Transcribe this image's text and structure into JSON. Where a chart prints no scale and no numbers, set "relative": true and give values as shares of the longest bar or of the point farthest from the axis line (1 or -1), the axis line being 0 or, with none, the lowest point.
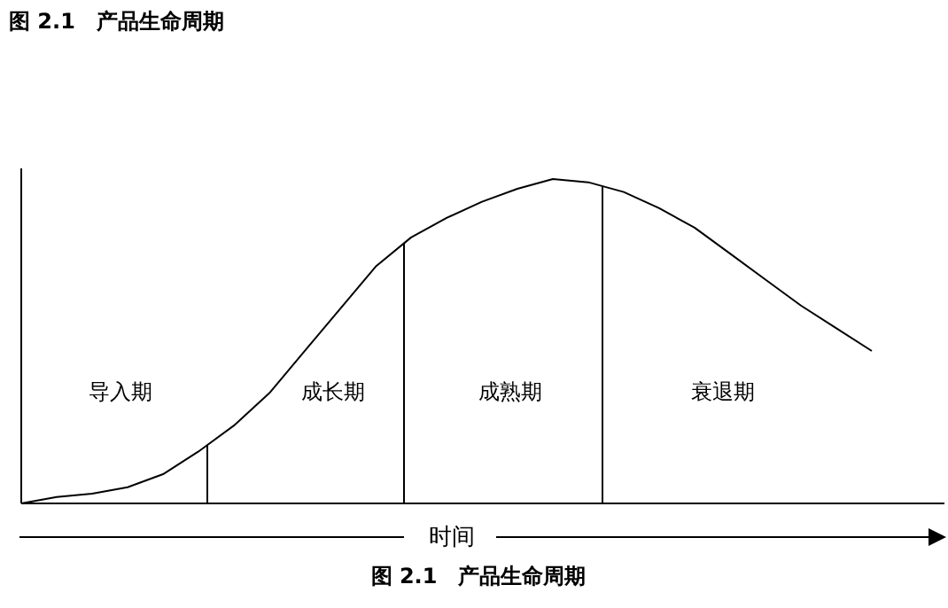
{
  "chart_data": {
    "type": "line",
    "title": "图 2.1　产品生命周期",
    "xlabel": "时间",
    "relative": true,
    "categories": [
      null,
      null,
      null,
      null,
      null,
      null,
      null,
      null,
      null,
      null,
      null,
      null,
      null,
      null,
      null,
      null,
      null,
      null,
      null,
      null,
      null,
      null,
      null,
      null,
      null
    ],
    "series": [
      {
        "color": "#000000",
        "values": [
          0,
          0.02,
          0.03,
          0.05,
          0.09,
          0.16,
          0.24,
          0.34,
          0.47,
          0.6,
          0.73,
          0.82,
          0.88,
          0.93,
          0.97,
          1,
          0.99,
          0.96,
          0.91,
          0.85,
          0.77,
          0.69,
          0.61,
          0.54,
          0.47
        ]
      }
    ],
    "annotations": [
      "导入期",
      "成长期",
      "成熟期",
      "衰退期",
      "图 2.1　产品生命周期"
    ]
  }
}
